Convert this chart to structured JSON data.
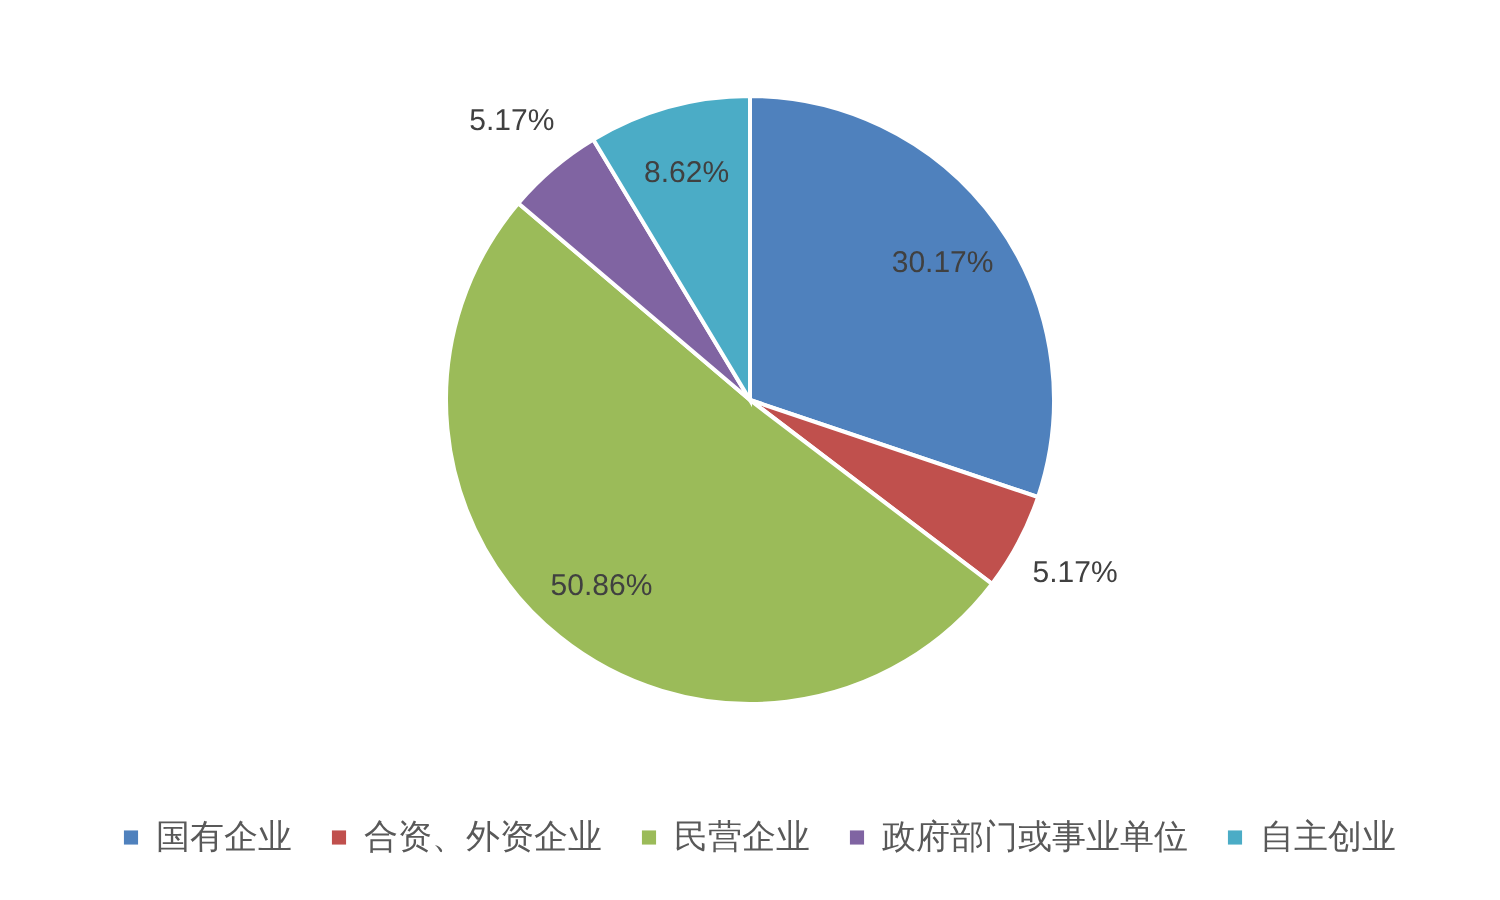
{
  "chart_data": {
    "type": "pie",
    "categories": [
      "国有企业",
      "合资、外资企业",
      "民营企业",
      "政府部门或事业单位",
      "自主创业"
    ],
    "values": [
      30.17,
      5.17,
      50.86,
      5.17,
      8.62
    ],
    "colors": [
      "#4f81bd",
      "#c0504d",
      "#9bbb59",
      "#8064a2",
      "#4bacc6"
    ],
    "value_labels": [
      "30.17%",
      "5.17%",
      "50.86%",
      "5.17%",
      "8.62%"
    ],
    "legend": "bottom"
  }
}
